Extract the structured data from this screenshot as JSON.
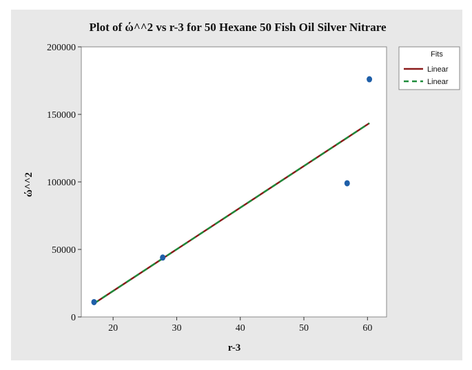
{
  "chart_data": {
    "type": "scatter",
    "title": "Plot of ώ^^2 vs r-3 for 50 Hexane 50 Fish Oil Silver Nitrare",
    "xlabel": "r-3",
    "ylabel": "ώ^^2",
    "xlim": [
      15,
      63
    ],
    "ylim": [
      0,
      200000
    ],
    "x_ticks": [
      20,
      30,
      40,
      50,
      60
    ],
    "y_ticks": [
      0,
      50000,
      100000,
      150000,
      200000
    ],
    "x_tick_labels": [
      "20",
      "30",
      "40",
      "50",
      "60"
    ],
    "y_tick_labels": [
      "0",
      "50000",
      "100000",
      "150000",
      "200000"
    ],
    "grid": false,
    "points": {
      "x": [
        17.0,
        27.8,
        56.8,
        60.3
      ],
      "y": [
        11000,
        44000,
        99000,
        176000
      ],
      "color": "#1f5fa8"
    },
    "fit_lines": [
      {
        "legend_label": "Linear",
        "style": "solid",
        "color": "#8b1a1a",
        "x": [
          17.0,
          60.3
        ],
        "y": [
          10000,
          143500
        ]
      },
      {
        "legend_label": "Linear",
        "style": "dashed",
        "color": "#1e8b3a",
        "x": [
          17.0,
          60.3
        ],
        "y": [
          10000,
          143500
        ]
      }
    ],
    "legend": {
      "title": "Fits",
      "position": "top-right"
    },
    "colors": {
      "figure_bg": "#e8e8e8",
      "plot_bg": "#ffffff"
    }
  }
}
